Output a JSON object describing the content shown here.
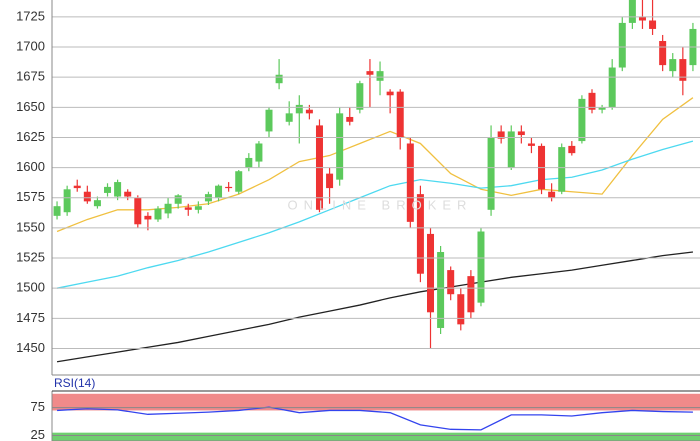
{
  "chart_data": [
    {
      "type": "candlestick",
      "watermark": "ONLINE BROKER",
      "up_color": "#5cc95c",
      "down_color": "#ee3333",
      "xlim": [
        -0.5,
        63.7
      ],
      "ylim": [
        1428,
        1739
      ],
      "yticks": [
        1450,
        1475,
        1500,
        1525,
        1550,
        1575,
        1600,
        1625,
        1650,
        1675,
        1700,
        1725
      ],
      "grid": true,
      "open": [
        1560,
        1563,
        1585,
        1580,
        1568,
        1579,
        1576,
        1580,
        1575,
        1560,
        1557,
        1562,
        1570,
        1567,
        1565,
        1572,
        1575,
        1584,
        1580,
        1600,
        1605,
        1630,
        1670,
        1638,
        1645,
        1648,
        1635,
        1595,
        1590,
        1642,
        1648,
        1680,
        1672,
        1663,
        1663,
        1620,
        1578,
        1545,
        1467,
        1515,
        1495,
        1510,
        1488,
        1565,
        1630,
        1600,
        1630,
        1620,
        1618,
        1580,
        1580,
        1618,
        1622,
        1662,
        1648,
        1650,
        1683,
        1720,
        1725,
        1722,
        1705,
        1680,
        1690,
        1685
      ],
      "close": [
        1568,
        1582,
        1583,
        1572,
        1573,
        1584,
        1588,
        1576,
        1553,
        1557,
        1566,
        1570,
        1577,
        1565,
        1568,
        1578,
        1585,
        1583,
        1597,
        1608,
        1620,
        1648,
        1677,
        1645,
        1652,
        1645,
        1565,
        1583,
        1645,
        1638,
        1670,
        1677,
        1680,
        1660,
        1625,
        1555,
        1512,
        1480,
        1530,
        1495,
        1470,
        1480,
        1547,
        1625,
        1624,
        1630,
        1627,
        1618,
        1582,
        1575,
        1617,
        1612,
        1657,
        1648,
        1650,
        1683,
        1720,
        1740,
        1722,
        1715,
        1685,
        1690,
        1672,
        1715
      ],
      "high": [
        1572,
        1585,
        1590,
        1585,
        1576,
        1587,
        1590,
        1582,
        1577,
        1563,
        1568,
        1575,
        1578,
        1570,
        1572,
        1580,
        1586,
        1588,
        1598,
        1612,
        1622,
        1650,
        1690,
        1655,
        1660,
        1652,
        1640,
        1600,
        1650,
        1650,
        1672,
        1690,
        1688,
        1665,
        1665,
        1625,
        1585,
        1550,
        1535,
        1518,
        1500,
        1515,
        1550,
        1635,
        1635,
        1635,
        1635,
        1625,
        1620,
        1587,
        1620,
        1622,
        1660,
        1665,
        1652,
        1690,
        1725,
        1745,
        1740,
        1740,
        1710,
        1695,
        1700,
        1720
      ],
      "low": [
        1557,
        1560,
        1580,
        1570,
        1566,
        1576,
        1573,
        1573,
        1550,
        1548,
        1555,
        1558,
        1566,
        1560,
        1562,
        1569,
        1572,
        1580,
        1578,
        1597,
        1600,
        1625,
        1665,
        1635,
        1620,
        1640,
        1563,
        1570,
        1585,
        1635,
        1645,
        1650,
        1660,
        1645,
        1615,
        1550,
        1505,
        1450,
        1462,
        1490,
        1465,
        1475,
        1485,
        1560,
        1620,
        1598,
        1620,
        1612,
        1578,
        1572,
        1578,
        1610,
        1620,
        1645,
        1645,
        1648,
        1680,
        1715,
        1715,
        1710,
        1680,
        1675,
        1660,
        1680
      ],
      "series": [
        {
          "color": "#f0c040",
          "x": [
            0,
            3,
            6,
            9,
            12,
            15,
            18,
            21,
            24,
            27,
            30,
            33,
            36,
            39,
            42,
            45,
            48,
            51,
            54,
            57,
            60,
            63
          ],
          "values": [
            1547,
            1557,
            1565,
            1565,
            1567,
            1570,
            1578,
            1590,
            1605,
            1610,
            1620,
            1630,
            1620,
            1595,
            1582,
            1577,
            1582,
            1580,
            1578,
            1610,
            1640,
            1658
          ]
        },
        {
          "color": "#4dd9f0",
          "x": [
            0,
            3,
            6,
            9,
            12,
            15,
            18,
            21,
            24,
            27,
            30,
            33,
            36,
            39,
            42,
            45,
            48,
            51,
            54,
            57,
            60,
            63
          ],
          "values": [
            1500,
            1505,
            1510,
            1517,
            1523,
            1530,
            1538,
            1546,
            1555,
            1565,
            1575,
            1585,
            1590,
            1587,
            1583,
            1585,
            1590,
            1592,
            1598,
            1607,
            1615,
            1622
          ]
        },
        {
          "color": "#222222",
          "x": [
            0,
            3,
            6,
            9,
            12,
            15,
            18,
            21,
            24,
            27,
            30,
            33,
            36,
            39,
            42,
            45,
            48,
            51,
            54,
            57,
            60,
            63
          ],
          "values": [
            1439,
            1443,
            1447,
            1451,
            1455,
            1460,
            1465,
            1470,
            1476,
            1481,
            1486,
            1492,
            1497,
            1501,
            1505,
            1509,
            1512,
            1515,
            1519,
            1523,
            1527,
            1530
          ]
        }
      ]
    },
    {
      "type": "line",
      "title": "RSI(14)",
      "xlim": [
        -0.5,
        63.7
      ],
      "ylim": [
        15,
        105
      ],
      "yticks": [
        75,
        25
      ],
      "grid": true,
      "bands": [
        {
          "from": 70,
          "to": 100,
          "color": "#f08a8a"
        },
        {
          "from": 0,
          "to": 30,
          "color": "#6fcf6f"
        }
      ],
      "series": [
        {
          "color": "#3344ee",
          "x": [
            0,
            3,
            6,
            9,
            12,
            15,
            18,
            21,
            24,
            27,
            30,
            33,
            36,
            39,
            42,
            45,
            48,
            51,
            54,
            57,
            60,
            63
          ],
          "values": [
            70,
            73,
            71,
            63,
            65,
            67,
            70,
            76,
            66,
            70,
            70,
            66,
            44,
            36,
            35,
            62,
            62,
            60,
            66,
            70,
            68,
            67
          ]
        }
      ]
    }
  ]
}
